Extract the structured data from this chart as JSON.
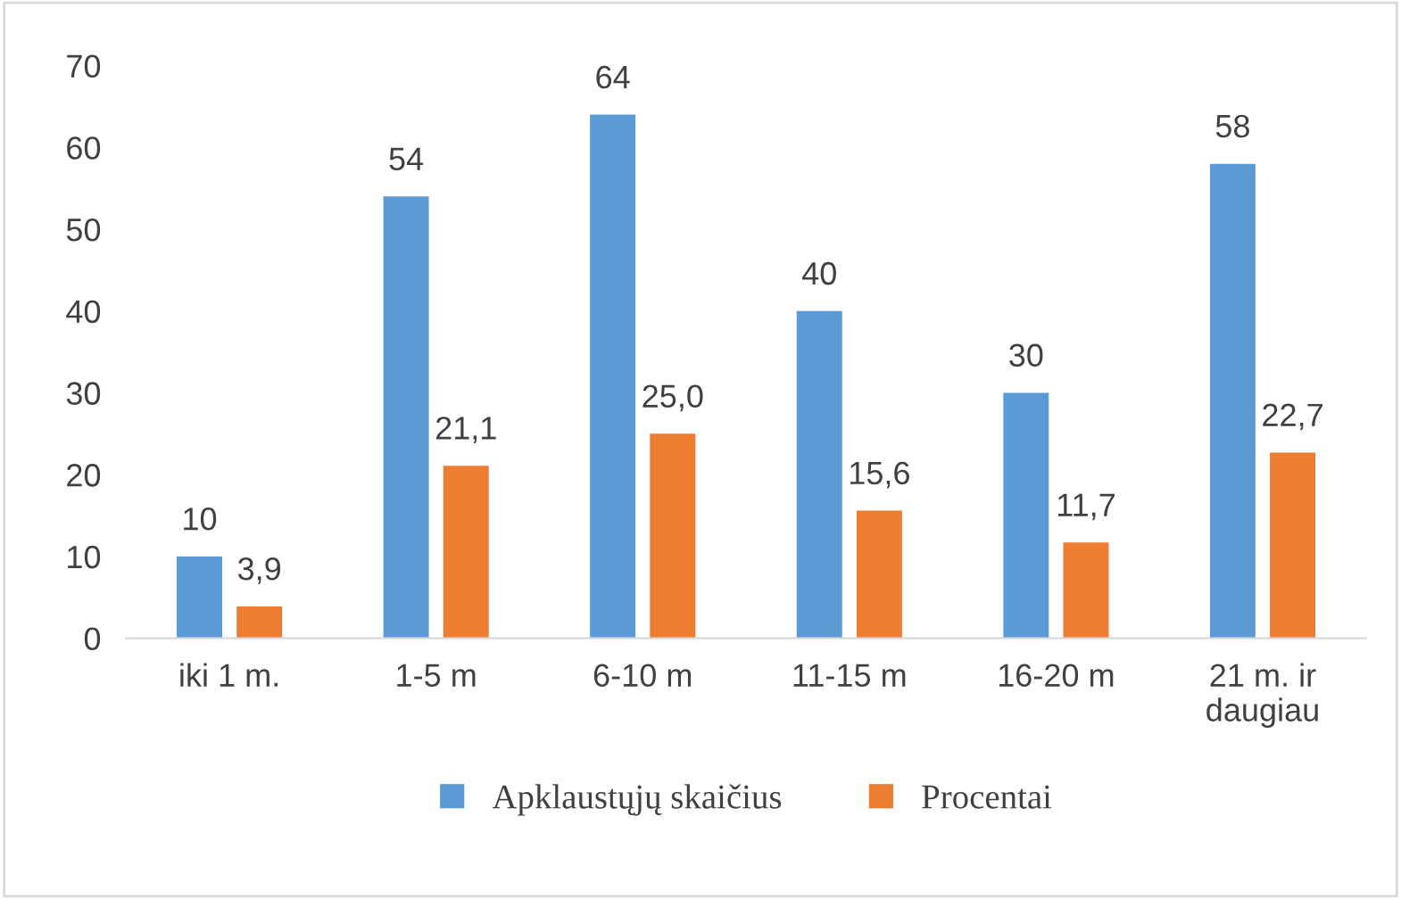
{
  "chart_data": {
    "type": "bar",
    "categories": [
      "iki 1 m.",
      "1-5 m",
      "6-10 m",
      "11-15 m",
      "16-20 m",
      "21 m. ir\ndaugiau"
    ],
    "series": [
      {
        "name": "Apklaustųjų skaičius",
        "color": "#5b9bd5",
        "values": [
          10,
          54,
          64,
          40,
          30,
          58
        ],
        "value_labels": [
          "10",
          "54",
          "64",
          "40",
          "30",
          "58"
        ]
      },
      {
        "name": "Procentai",
        "color": "#ed7d31",
        "values": [
          3.9,
          21.1,
          25.0,
          15.6,
          11.7,
          22.7
        ],
        "value_labels": [
          "3,9",
          "21,1",
          "25,0",
          "15,6",
          "11,7",
          "22,7"
        ]
      }
    ],
    "ylim": [
      0,
      70
    ],
    "yticks": [
      0,
      10,
      20,
      30,
      40,
      50,
      60,
      70
    ],
    "grid": false,
    "legend": "bottom"
  }
}
